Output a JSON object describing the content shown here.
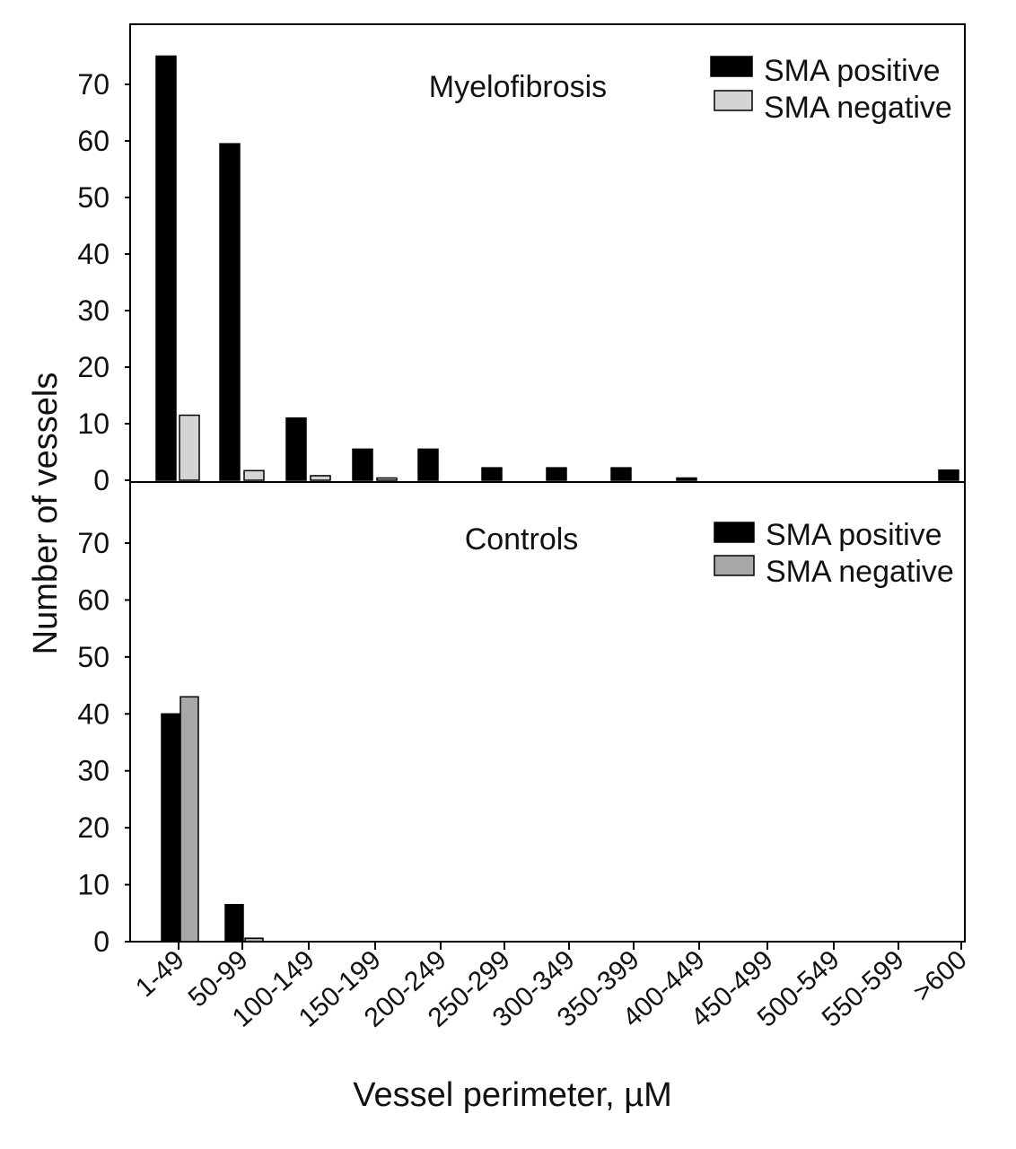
{
  "chart_data": {
    "type": "bar",
    "ylabel": "Number of vessels",
    "xlabel": "Vessel perimeter, µM",
    "ylim": [
      0,
      80
    ],
    "yticks": [
      0,
      10,
      20,
      30,
      40,
      50,
      60,
      70
    ],
    "categories": [
      "1-49",
      "50-99",
      "100-149",
      "150-199",
      "200-249",
      "250-299",
      "300-349",
      "350-399",
      "400-449",
      "450-499",
      "500-549",
      "550-599",
      ">600"
    ],
    "colors": {
      "positive": "#000000",
      "negative": "#d4d4d4",
      "negative_controls": "#a8a8a8"
    },
    "panels": [
      {
        "title": "Myelofibrosis",
        "legend_position": "top-right",
        "series": [
          {
            "name": "SMA positive",
            "values": [
              75,
              59.5,
              11,
              5.5,
              5.5,
              2.2,
              2.2,
              2.2,
              0.4,
              0,
              0,
              0,
              1.8
            ]
          },
          {
            "name": "SMA negative",
            "values": [
              11.5,
              1.7,
              0.8,
              0.4,
              0,
              0,
              0,
              0,
              0,
              0,
              0,
              0,
              0
            ]
          }
        ]
      },
      {
        "title": "Controls",
        "legend_position": "top-right",
        "series": [
          {
            "name": "SMA positive",
            "values": [
              40,
              6.5,
              0,
              0,
              0,
              0,
              0,
              0,
              0,
              0,
              0,
              0,
              0
            ]
          },
          {
            "name": "SMA negative",
            "values": [
              43,
              0.6,
              0,
              0,
              0,
              0,
              0,
              0,
              0,
              0,
              0,
              0,
              0
            ]
          }
        ]
      }
    ]
  }
}
